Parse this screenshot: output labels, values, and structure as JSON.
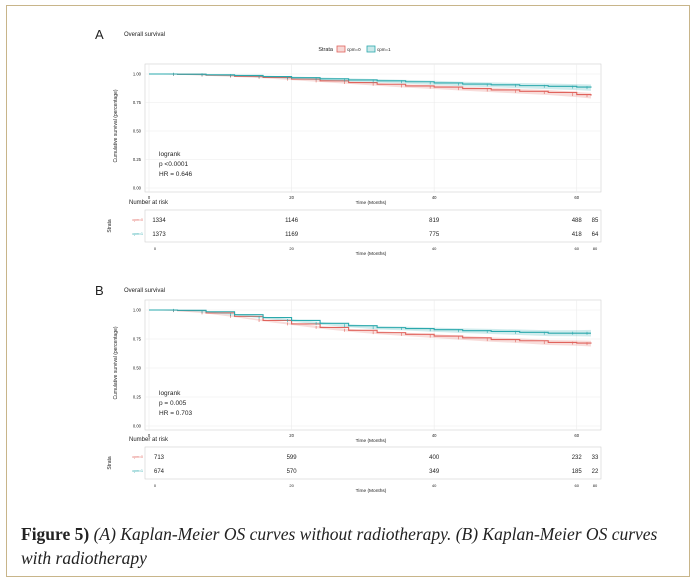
{
  "caption": {
    "label": "Figure 5)",
    "text": " (A) Kaplan-Meier OS curves without radiotherapy. (B) Kaplan-Meier OS curves with radiotherapy"
  },
  "colors": {
    "cpm0": "#e0635c",
    "cpm1": "#2aa8ac"
  },
  "chart_data": [
    {
      "type": "line",
      "panel_label": "A",
      "title": "Overall survival",
      "xlabel": "Time (Months)",
      "ylabel": "Cumulative survival (percentage)",
      "xlim": [
        0,
        62
      ],
      "ylim": [
        0,
        1
      ],
      "x_ticks": [
        "0",
        "20",
        "40",
        "60"
      ],
      "y_ticks": [
        "0.00",
        "0.25",
        "0.50",
        "0.75",
        "1.00"
      ],
      "legend": {
        "title": "Strata",
        "position": "top"
      },
      "series": [
        {
          "name": "cpm=0",
          "x": [
            0,
            4,
            8,
            12,
            16,
            20,
            24,
            28,
            32,
            36,
            40,
            44,
            48,
            52,
            56,
            60,
            62
          ],
          "y": [
            1.0,
            0.997,
            0.99,
            0.98,
            0.97,
            0.955,
            0.94,
            0.925,
            0.91,
            0.895,
            0.885,
            0.872,
            0.86,
            0.848,
            0.838,
            0.82,
            0.81
          ]
        },
        {
          "name": "cpm=1",
          "x": [
            0,
            4,
            8,
            12,
            16,
            20,
            24,
            28,
            32,
            36,
            40,
            44,
            48,
            52,
            56,
            60,
            62
          ],
          "y": [
            1.0,
            0.998,
            0.993,
            0.987,
            0.978,
            0.968,
            0.958,
            0.948,
            0.94,
            0.932,
            0.922,
            0.912,
            0.905,
            0.898,
            0.892,
            0.885,
            0.88
          ]
        }
      ],
      "annotation": [
        "logrank",
        "p <0.0001",
        "HR = 0.646"
      ],
      "risk_table": {
        "title": "Number at risk",
        "strata_label": "Strata",
        "rows": [
          {
            "name": "cpm=0",
            "values": [
              "1334",
              "1146",
              "819",
              "488",
              "85"
            ]
          },
          {
            "name": "cpm=1",
            "values": [
              "1373",
              "1169",
              "775",
              "418",
              "64"
            ]
          }
        ],
        "x_ticks": [
          "0",
          "20",
          "40",
          "60",
          "80"
        ],
        "xlabel": "Time (Months)"
      }
    },
    {
      "type": "line",
      "panel_label": "B",
      "title": "Overall survival",
      "xlabel": "Time (Months)",
      "ylabel": "Cumulative survival (percentage)",
      "xlim": [
        0,
        62
      ],
      "ylim": [
        0,
        1
      ],
      "x_ticks": [
        "0",
        "20",
        "40",
        "60",
        "80"
      ],
      "y_ticks": [
        "0.00",
        "0.25",
        "0.50",
        "0.75",
        "1.00"
      ],
      "legend": {
        "title": "Strata",
        "position": "top"
      },
      "series": [
        {
          "name": "cpm=0",
          "x": [
            0,
            4,
            8,
            12,
            16,
            20,
            24,
            28,
            32,
            36,
            40,
            44,
            48,
            52,
            56,
            60,
            62
          ],
          "y": [
            1.0,
            0.995,
            0.975,
            0.945,
            0.91,
            0.88,
            0.85,
            0.825,
            0.805,
            0.79,
            0.775,
            0.76,
            0.745,
            0.735,
            0.72,
            0.715,
            0.71
          ]
        },
        {
          "name": "cpm=1",
          "x": [
            0,
            4,
            8,
            12,
            16,
            20,
            24,
            28,
            32,
            36,
            40,
            44,
            48,
            52,
            56,
            60,
            62
          ],
          "y": [
            1.0,
            0.997,
            0.985,
            0.96,
            0.935,
            0.91,
            0.885,
            0.865,
            0.848,
            0.84,
            0.83,
            0.822,
            0.815,
            0.808,
            0.8,
            0.8,
            0.8
          ]
        }
      ],
      "annotation": [
        "logrank",
        "p = 0.005",
        "HR = 0.703"
      ],
      "risk_table": {
        "title": "Number at risk",
        "strata_label": "Strata",
        "rows": [
          {
            "name": "cpm=0",
            "values": [
              "713",
              "599",
              "400",
              "232",
              "33"
            ]
          },
          {
            "name": "cpm=1",
            "values": [
              "674",
              "570",
              "349",
              "185",
              "22"
            ]
          }
        ],
        "x_ticks": [
          "0",
          "20",
          "40",
          "60",
          "80"
        ],
        "xlabel": "Time (Months)"
      }
    }
  ]
}
